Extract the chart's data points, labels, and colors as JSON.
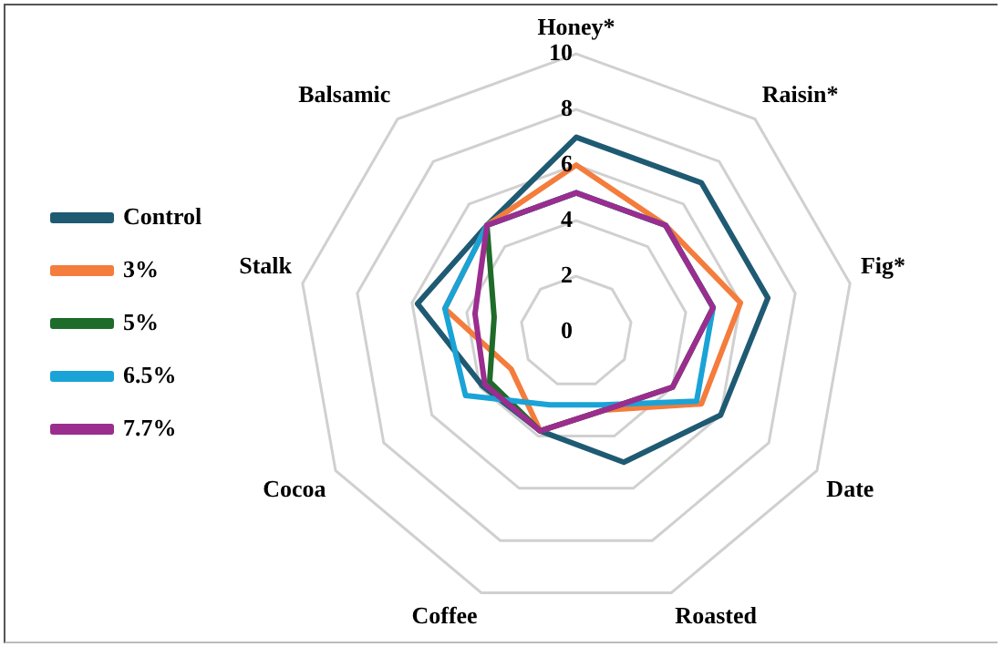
{
  "chart_data": {
    "type": "radar",
    "categories": [
      "Honey*",
      "Raisin*",
      "Fig*",
      "Date",
      "Roasted",
      "Coffee",
      "Cocoa",
      "Stalk",
      "Balsamic"
    ],
    "ylim": [
      0,
      10
    ],
    "yticks": [
      0,
      2,
      4,
      6,
      8,
      10
    ],
    "grid": true,
    "legend": "left",
    "marker": "none",
    "series": [
      {
        "name": "Control",
        "color": "#1f5a73",
        "values": [
          7,
          7,
          7,
          6,
          5,
          3.8,
          3.9,
          5.8,
          5
        ]
      },
      {
        "name": "3%",
        "color": "#f47c3c",
        "values": [
          6,
          5,
          6,
          5.2,
          3,
          3.8,
          2.7,
          4.8,
          5
        ]
      },
      {
        "name": "5%",
        "color": "#1e6b2a",
        "values": [
          5,
          5,
          5,
          4,
          3,
          3.8,
          3.6,
          3,
          5
        ]
      },
      {
        "name": "6.5%",
        "color": "#1aa3d6",
        "values": [
          5,
          5,
          5,
          5,
          2.8,
          2.8,
          4.6,
          4.8,
          5
        ]
      },
      {
        "name": "7.7%",
        "color": "#9b2d8f",
        "values": [
          5,
          5,
          5,
          4,
          3,
          3.8,
          3.8,
          3.7,
          5
        ]
      }
    ]
  }
}
